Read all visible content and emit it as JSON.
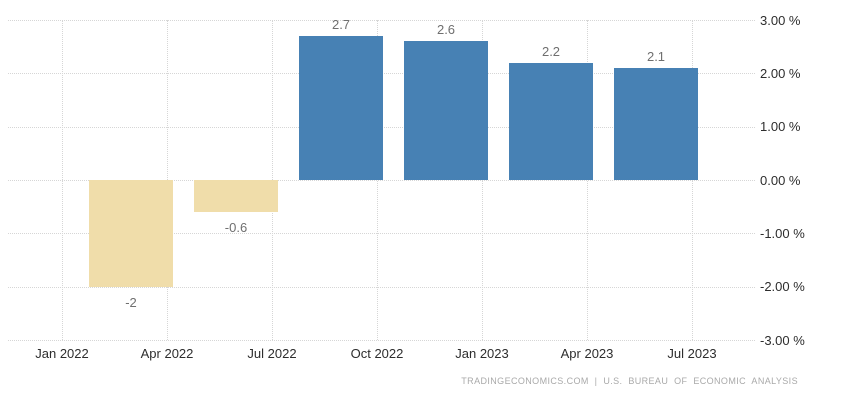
{
  "chart_data": {
    "type": "bar",
    "title": "",
    "x_tick_labels": [
      "Jan 2022",
      "Apr 2022",
      "Jul 2022",
      "Oct 2022",
      "Jan 2023",
      "Apr 2023",
      "Jul 2023"
    ],
    "y_tick_labels": [
      "3.00 %",
      "2.00 %",
      "1.00 %",
      "0.00 %",
      "-1.00 %",
      "-2.00 %",
      "-3.00 %"
    ],
    "ylim": [
      -3,
      3
    ],
    "grid": "dotted",
    "legend": "none",
    "values": [
      -2,
      -0.6,
      2.7,
      2.6,
      2.2,
      2.1
    ],
    "data_labels": [
      "-2",
      "-0.6",
      "2.7",
      "2.6",
      "2.2",
      "2.1"
    ],
    "colors": {
      "positive_bar": "#4781B4",
      "negative_bar": "#F0DDAA",
      "gridline": "#D6D6D6",
      "axis_label": "#2D2D2D",
      "data_label": "#6F6F6F",
      "footer_text": "#A9A9A9"
    }
  },
  "footer": {
    "attribution": "TRADINGECONOMICS.COM | U.S. BUREAU OF ECONOMIC ANALYSIS"
  }
}
